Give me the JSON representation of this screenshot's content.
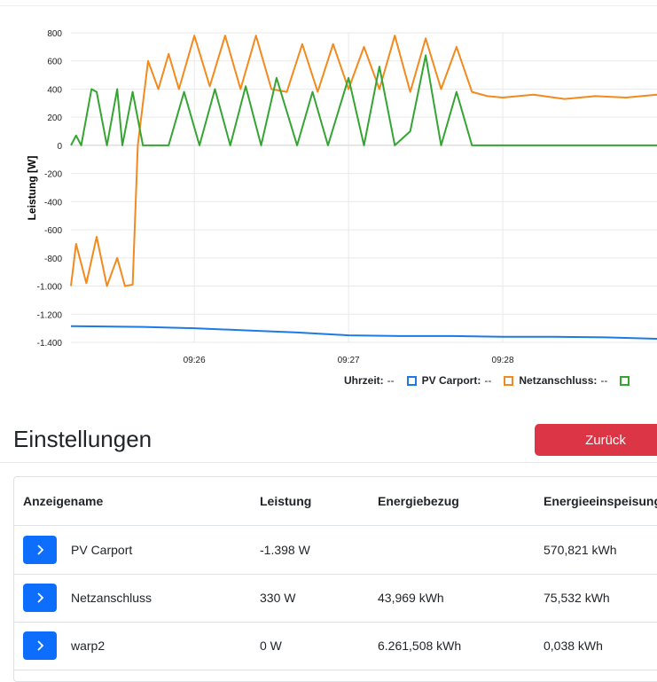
{
  "chart_data": {
    "type": "line",
    "ylabel": "Leistung [W]",
    "ylim": [
      -1400,
      800
    ],
    "yticks": [
      800,
      600,
      400,
      200,
      0,
      -200,
      -400,
      -600,
      -800,
      -1000,
      -1200,
      -1400
    ],
    "ytick_labels": [
      "800",
      "600",
      "400",
      "200",
      "0",
      "-200",
      "-400",
      "-600",
      "-800",
      "-1.000",
      "-1.200",
      "-1.400"
    ],
    "xlim": [
      "09:25:12",
      "09:29:00"
    ],
    "xticks": [
      "09:26",
      "09:27",
      "09:28"
    ],
    "grid": true,
    "series": [
      {
        "name": "PV Carport",
        "color": "#1c7ae8",
        "x": [
          "09:25:12",
          "09:25:40",
          "09:26:00",
          "09:26:20",
          "09:26:40",
          "09:27:00",
          "09:27:20",
          "09:27:40",
          "09:28:00",
          "09:28:20",
          "09:28:40",
          "09:29:00"
        ],
        "y": [
          -1285,
          -1290,
          -1300,
          -1315,
          -1330,
          -1350,
          -1355,
          -1355,
          -1360,
          -1360,
          -1365,
          -1375
        ]
      },
      {
        "name": "Netzanschluss",
        "color": "#f28a1e",
        "x": [
          "09:25:12",
          "09:25:14",
          "09:25:18",
          "09:25:22",
          "09:25:26",
          "09:25:30",
          "09:25:33",
          "09:25:36",
          "09:25:38",
          "09:25:42",
          "09:25:46",
          "09:25:50",
          "09:25:54",
          "09:26:00",
          "09:26:06",
          "09:26:12",
          "09:26:18",
          "09:26:24",
          "09:26:30",
          "09:26:36",
          "09:26:42",
          "09:26:48",
          "09:26:54",
          "09:27:00",
          "09:27:06",
          "09:27:12",
          "09:27:18",
          "09:27:24",
          "09:27:30",
          "09:27:36",
          "09:27:42",
          "09:27:48",
          "09:27:54",
          "09:28:00",
          "09:28:12",
          "09:28:24",
          "09:28:36",
          "09:28:48",
          "09:29:00"
        ],
        "y": [
          -1000,
          -700,
          -980,
          -650,
          -1000,
          -800,
          -1000,
          -990,
          0,
          600,
          400,
          650,
          400,
          780,
          420,
          780,
          400,
          780,
          400,
          380,
          720,
          380,
          720,
          400,
          700,
          400,
          780,
          380,
          760,
          400,
          700,
          380,
          350,
          340,
          360,
          330,
          350,
          340,
          360
        ]
      },
      {
        "name": "",
        "color": "#34a532",
        "x": [
          "09:25:12",
          "09:25:14",
          "09:25:16",
          "09:25:20",
          "09:25:22",
          "09:25:26",
          "09:25:30",
          "09:25:32",
          "09:25:36",
          "09:25:40",
          "09:25:50",
          "09:25:56",
          "09:26:02",
          "09:26:08",
          "09:26:14",
          "09:26:20",
          "09:26:26",
          "09:26:32",
          "09:26:40",
          "09:26:46",
          "09:26:52",
          "09:27:00",
          "09:27:06",
          "09:27:12",
          "09:27:18",
          "09:27:24",
          "09:27:30",
          "09:27:36",
          "09:27:42",
          "09:27:48",
          "09:28:00",
          "09:28:30",
          "09:29:00"
        ],
        "y": [
          0,
          70,
          0,
          400,
          380,
          0,
          400,
          0,
          380,
          0,
          0,
          380,
          0,
          400,
          0,
          420,
          0,
          480,
          0,
          380,
          0,
          480,
          0,
          560,
          0,
          100,
          640,
          0,
          380,
          0,
          0,
          0,
          0
        ]
      }
    ]
  },
  "legend": {
    "time_label": "Uhrzeit:",
    "time_value": "--",
    "items": [
      {
        "label": "PV Carport:",
        "value": "--",
        "color": "#1c7ae8"
      },
      {
        "label": "Netzanschluss:",
        "value": "--",
        "color": "#f28a1e"
      },
      {
        "label": "",
        "value": "",
        "color": "#34a532"
      }
    ]
  },
  "settings": {
    "title": "Einstellungen",
    "back_button": "Zurück",
    "back_color": "#dc3545"
  },
  "table": {
    "columns": [
      "Anzeigename",
      "Leistung",
      "Energiebezug",
      "Energieeinspeisung"
    ],
    "rows": [
      {
        "name": "PV Carport",
        "power": "-1.398 W",
        "import": "",
        "export": "570,821 kWh"
      },
      {
        "name": "Netzanschluss",
        "power": "330 W",
        "import": "43,969 kWh",
        "export": "75,532 kWh"
      },
      {
        "name": "warp2",
        "power": "0 W",
        "import": "6.261,508 kWh",
        "export": "0,038 kWh"
      }
    ]
  }
}
